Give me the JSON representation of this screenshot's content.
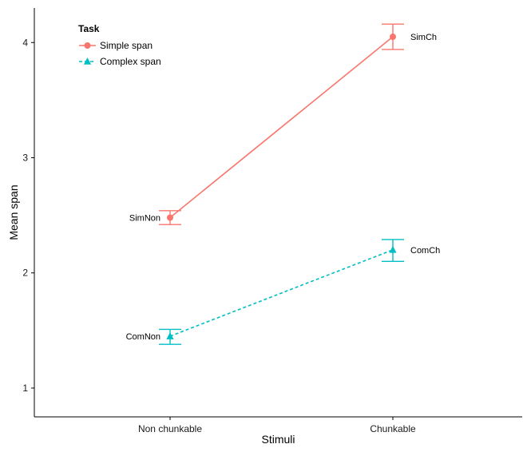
{
  "chart_data": {
    "type": "line",
    "categories": [
      "Non chunkable",
      "Chunkable"
    ],
    "xlabel": "Stimuli",
    "ylabel": "Mean span",
    "ylim": [
      0.75,
      4.3
    ],
    "yticks": [
      1,
      2,
      3,
      4
    ],
    "grid": false,
    "legend": {
      "title": "Task",
      "placement": "top-left"
    },
    "series": [
      {
        "name": "Simple span",
        "values": [
          2.48,
          4.05
        ],
        "error_low": [
          2.42,
          3.94
        ],
        "error_high": [
          2.54,
          4.16
        ],
        "point_labels": [
          "SimNon",
          "SimCh"
        ],
        "marker": "circle",
        "line_style": "solid",
        "color": "#F8766D"
      },
      {
        "name": "Complex span",
        "values": [
          1.45,
          2.2
        ],
        "error_low": [
          1.38,
          2.1
        ],
        "error_high": [
          1.51,
          2.29
        ],
        "point_labels": [
          "ComNon",
          "ComCh"
        ],
        "marker": "triangle",
        "line_style": "dashed",
        "color": "#00BFC4"
      }
    ]
  }
}
